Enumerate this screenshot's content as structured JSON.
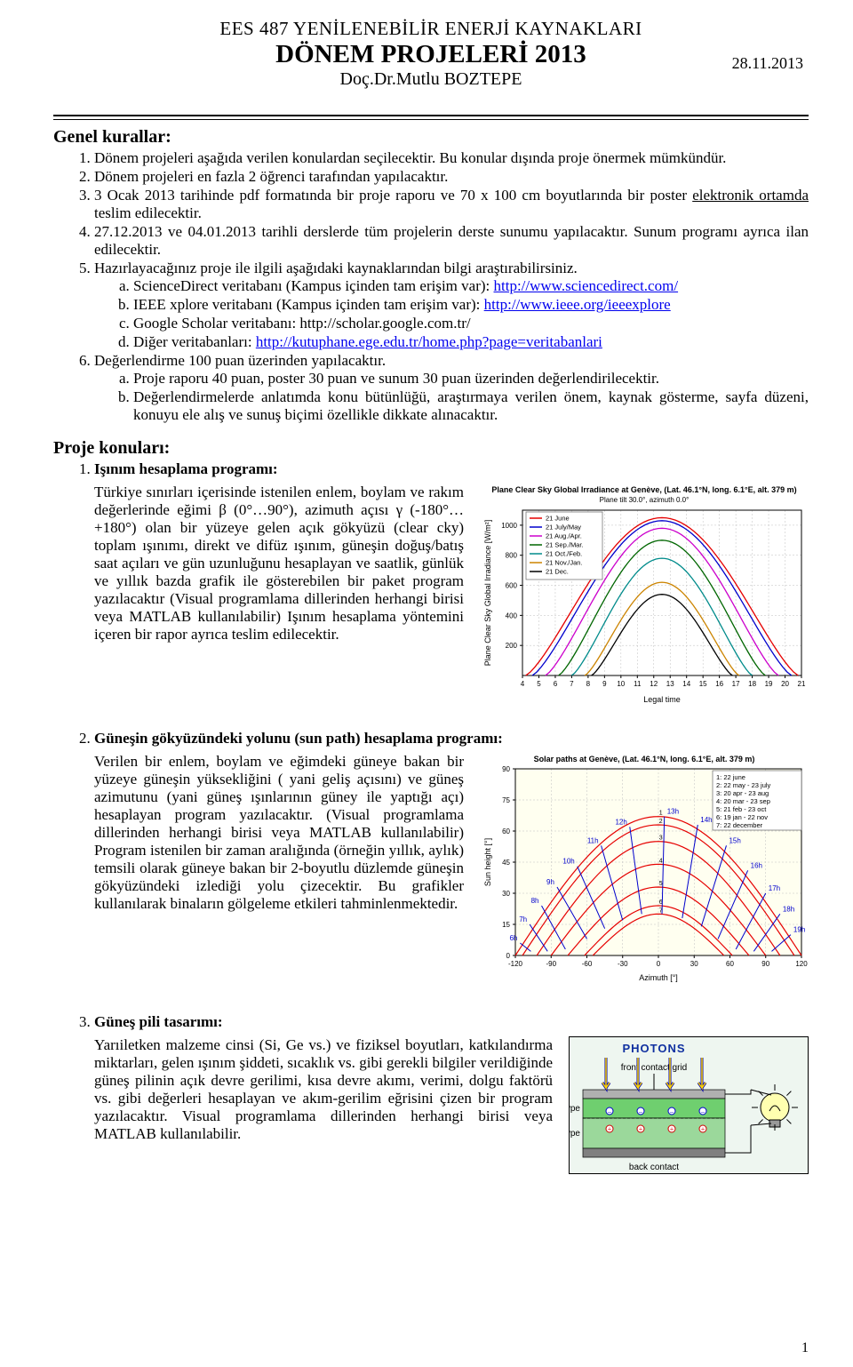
{
  "header": {
    "line1": "EES 487 YENİLENEBİLİR ENERJİ KAYNAKLARI",
    "line2": "DÖNEM PROJELERİ 2013",
    "line3": "Doç.Dr.Mutlu BOZTEPE",
    "date": "28.11.2013"
  },
  "rules_header": "Genel kurallar:",
  "rules": [
    "Dönem projeleri aşağıda verilen konulardan seçilecektir. Bu konular dışında proje önermek mümkündür.",
    "Dönem projeleri en fazla 2 öğrenci tarafından yapılacaktır.",
    "3 Ocak 2013 tarihinde pdf formatında bir proje raporu ve 70 x 100 cm boyutlarında bir poster ",
    "27.12.2013 ve 04.01.2013 tarihli derslerde tüm projelerin derste sunumu yapılacaktır. Sunum programı ayrıca ilan edilecektir.",
    "Hazırlayacağınız proje ile ilgili aşağıdaki kaynaklarından bilgi araştırabilirsiniz.",
    "Değerlendirme 100 puan üzerinden yapılacaktır."
  ],
  "rule3_underline1": "elektronik ortamda",
  "rule3_tail": " teslim edilecektir.",
  "sources": {
    "a_pre": "ScienceDirect veritabanı (Kampus içinden tam erişim var): ",
    "a_url": "http://www.sciencedirect.com/",
    "b_pre": "IEEE xplore veritabanı (Kampus içinden tam erişim var): ",
    "b_url": "http://www.ieee.org/ieeexplore",
    "c": "Google Scholar veritabanı: http://scholar.google.com.tr/",
    "d_pre": "Diğer veritabanları: ",
    "d_url": "http://kutuphane.ege.edu.tr/home.php?page=veritabanlari"
  },
  "evals": {
    "a": "Proje raporu 40 puan, poster 30 puan ve sunum 30 puan üzerinden değerlendirilecektir.",
    "b": "Değerlendirmelerde anlatımda konu bütünlüğü, araştırmaya verilen önem, kaynak gösterme, sayfa düzeni, konuyu ele alış ve sunuş biçimi özellikle dikkate alınacaktır."
  },
  "topics_header": "Proje konuları:",
  "topic1": {
    "title": "Işınım hesaplama programı:",
    "body": "Türkiye sınırları içerisinde istenilen enlem, boylam ve rakım değerlerinde eğimi β (0°…90°), azimuth açısı γ (-180°…+180°) olan bir yüzeye gelen açık gökyüzü (clear cky) toplam ışınımı, direkt ve difüz ışınım, güneşin doğuş/batış saat açıları ve gün uzunluğunu hesaplayan ve saatlik, günlük ve yıllık bazda grafik ile gösterebilen bir paket program yazılacaktır (Visual programlama dillerinden herhangi birisi veya MATLAB kullanılabilir) Işınım hesaplama yöntemini içeren bir rapor ayrıca teslim edilecektir."
  },
  "topic2": {
    "title": "Güneşin gökyüzündeki yolunu (sun path) hesaplama programı:",
    "body": "Verilen bir enlem, boylam ve eğimdeki güneye bakan bir yüzeye güneşin yüksekliğini ( yani geliş açısını) ve güneş azimutunu (yani güneş ışınlarının güney ile yaptığı açı) hesaplayan program yazılacaktır. (Visual programlama dillerinden herhangi birisi veya MATLAB kullanılabilir) Program istenilen bir zaman aralığında (örneğin yıllık, aylık) temsili olarak güneye bakan bir 2-boyutlu düzlemde güneşin gökyüzündeki izlediği yolu çizecektir. Bu grafikler kullanılarak binaların gölgeleme etkileri tahminlenmektedir."
  },
  "topic3": {
    "title": "Güneş pili tasarımı:",
    "body": "Yarıiletken malzeme cinsi (Si, Ge vs.)  ve fiziksel boyutları, katkılandırma miktarları, gelen ışınım şiddeti, sıcaklık vs. gibi gerekli bilgiler verildiğinde güneş pilinin açık devre gerilimi, kısa devre akımı, verimi, dolgu faktörü vs. gibi değerleri hesaplayan ve akım-gerilim eğrisini çizen bir program yazılacaktır. Visual programlama dillerinden herhangi birisi veya MATLAB kullanılabilir."
  },
  "page_number": "1",
  "chart1": {
    "title": "Plane Clear Sky Global Irradiance at Genève, (Lat. 46.1°N, long. 6.1°E, alt. 379 m)",
    "subtitle": "Plane tilt  30.0°, azimuth  0.0°",
    "xlabel": "Legal time",
    "ylabel": "Plane Clear Sky Global Irradiance [W/m²]",
    "xlim": [
      4,
      21
    ],
    "ylim": [
      0,
      1100
    ],
    "xticks": [
      4,
      5,
      6,
      7,
      8,
      9,
      10,
      11,
      12,
      13,
      14,
      15,
      16,
      17,
      18,
      19,
      20,
      21
    ],
    "yticks": [
      200,
      400,
      600,
      800,
      1000
    ],
    "background": "#ffffff",
    "grid_color": "#bfbfbf",
    "frame_color": "#000000",
    "legend_items": [
      {
        "label": "21 June",
        "color": "#e60000"
      },
      {
        "label": "21 July/May",
        "color": "#0000cc"
      },
      {
        "label": "21 Aug./Apr.",
        "color": "#cc00cc"
      },
      {
        "label": "21 Sep./Mar.",
        "color": "#006600"
      },
      {
        "label": "21 Oct./Feb.",
        "color": "#008b8b"
      },
      {
        "label": "21 Nov./Jan.",
        "color": "#cc8400"
      },
      {
        "label": "21 Dec.",
        "color": "#000000"
      }
    ],
    "curves": [
      {
        "sunrise": 4.2,
        "sunset": 20.8,
        "peak": 1050,
        "color": "#e60000"
      },
      {
        "sunrise": 4.6,
        "sunset": 20.4,
        "peak": 1030,
        "color": "#0000cc"
      },
      {
        "sunrise": 5.4,
        "sunset": 19.6,
        "peak": 980,
        "color": "#cc00cc"
      },
      {
        "sunrise": 6.2,
        "sunset": 18.8,
        "peak": 900,
        "color": "#006600"
      },
      {
        "sunrise": 7.0,
        "sunset": 18.0,
        "peak": 780,
        "color": "#008b8b"
      },
      {
        "sunrise": 7.8,
        "sunset": 17.2,
        "peak": 620,
        "color": "#cc8400"
      },
      {
        "sunrise": 8.2,
        "sunset": 16.8,
        "peak": 540,
        "color": "#000000"
      }
    ]
  },
  "chart2": {
    "title": "Solar paths at Genève, (Lat. 46.1°N, long. 6.1°E, alt. 379 m)",
    "xlabel": "Azimuth [°]",
    "ylabel": "Sun height [°]",
    "xlim": [
      -120,
      120
    ],
    "ylim": [
      0,
      90
    ],
    "xticks": [
      -120,
      -90,
      -60,
      -30,
      0,
      30,
      60,
      90,
      120
    ],
    "yticks": [
      0,
      15,
      30,
      45,
      60,
      75,
      90
    ],
    "background": "#fffff0",
    "grid_color": "#bfbfbf",
    "frame_color": "#000000",
    "hour_color": "#0000cc",
    "legend_items": [
      {
        "label": "1: 22 june",
        "color": "#000000"
      },
      {
        "label": "2: 22 may - 23 july",
        "color": "#000000"
      },
      {
        "label": "3: 20 apr - 23 aug",
        "color": "#000000"
      },
      {
        "label": "4: 20 mar - 23 sep",
        "color": "#000000"
      },
      {
        "label": "5: 21 feb - 23 oct",
        "color": "#000000"
      },
      {
        "label": "6: 19 jan - 22 nov",
        "color": "#000000"
      },
      {
        "label": "7: 22 december",
        "color": "#000000"
      }
    ],
    "curves": [
      {
        "az_min": -120,
        "az_max": 120,
        "hmax": 67,
        "color": "#e60000"
      },
      {
        "az_min": -114,
        "az_max": 114,
        "hmax": 63,
        "color": "#e60000"
      },
      {
        "az_min": -102,
        "az_max": 102,
        "hmax": 55,
        "color": "#e60000"
      },
      {
        "az_min": -90,
        "az_max": 90,
        "hmax": 44,
        "color": "#e60000"
      },
      {
        "az_min": -76,
        "az_max": 76,
        "hmax": 33,
        "color": "#e60000"
      },
      {
        "az_min": -62,
        "az_max": 62,
        "hmax": 24,
        "color": "#e60000"
      },
      {
        "az_min": -55,
        "az_max": 55,
        "hmax": 20,
        "color": "#e60000"
      }
    ],
    "hour_lines": [
      {
        "label": "6h",
        "az_low": -107,
        "h_low": 2,
        "az_high": -116,
        "h_high": 6
      },
      {
        "label": "7h",
        "az_low": -93,
        "h_low": 2,
        "az_high": -108,
        "h_high": 15
      },
      {
        "label": "8h",
        "az_low": -78,
        "h_low": 3,
        "az_high": -98,
        "h_high": 24
      },
      {
        "label": "9h",
        "az_low": -60,
        "h_low": 8,
        "az_high": -85,
        "h_high": 33
      },
      {
        "label": "10h",
        "az_low": -45,
        "h_low": 13,
        "az_high": -68,
        "h_high": 43
      },
      {
        "label": "11h",
        "az_low": -30,
        "h_low": 17,
        "az_high": -48,
        "h_high": 53
      },
      {
        "label": "12h",
        "az_low": -14,
        "h_low": 20,
        "az_high": -24,
        "h_high": 62
      },
      {
        "label": "13h",
        "az_low": 3,
        "h_low": 20,
        "az_high": 5,
        "h_high": 67
      },
      {
        "label": "14h",
        "az_low": 20,
        "h_low": 18,
        "az_high": 33,
        "h_high": 63
      },
      {
        "label": "15h",
        "az_low": 36,
        "h_low": 14,
        "az_high": 57,
        "h_high": 53
      },
      {
        "label": "16h",
        "az_low": 50,
        "h_low": 8,
        "az_high": 75,
        "h_high": 41
      },
      {
        "label": "17h",
        "az_low": 65,
        "h_low": 3,
        "az_high": 90,
        "h_high": 30
      },
      {
        "label": "18h",
        "az_low": 80,
        "h_low": 2,
        "az_high": 102,
        "h_high": 20
      },
      {
        "label": "19h",
        "az_low": 95,
        "h_low": 2,
        "az_high": 111,
        "h_high": 10
      }
    ]
  },
  "solarcell": {
    "photons_label": "PHOTONS",
    "front_label": "front contact grid",
    "n_label": "n-type",
    "p_label": "p-type",
    "back_label": "back contact",
    "colors": {
      "photons_arrow": "#ffd500",
      "photons_outline": "#0000aa",
      "front_grid": "#b0b0b0",
      "n_layer": "#6fcf6f",
      "p_layer": "#9bd89b",
      "back_layer": "#808080",
      "wire": "#000000",
      "bulb_fill": "#ffffb0",
      "plus": "#d00000",
      "minus": "#0000cc",
      "bg": "#eef6f0"
    }
  }
}
